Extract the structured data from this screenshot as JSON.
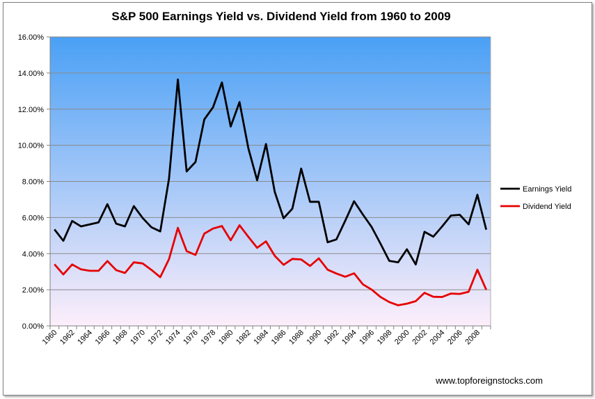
{
  "chart_data": {
    "type": "line",
    "title": "S&P 500  Earnings Yield vs. Dividend Yield from 1960 to 2009",
    "xlabel": "",
    "ylabel": "",
    "ylim": [
      0,
      16
    ],
    "y_ticks": [
      "0.00%",
      "2.00%",
      "4.00%",
      "6.00%",
      "8.00%",
      "10.00%",
      "12.00%",
      "14.00%",
      "16.00%"
    ],
    "x": [
      1960,
      1961,
      1962,
      1963,
      1964,
      1965,
      1966,
      1967,
      1968,
      1969,
      1970,
      1971,
      1972,
      1973,
      1974,
      1975,
      1976,
      1977,
      1978,
      1979,
      1980,
      1981,
      1982,
      1983,
      1984,
      1985,
      1986,
      1987,
      1988,
      1989,
      1990,
      1991,
      1992,
      1993,
      1994,
      1995,
      1996,
      1997,
      1998,
      1999,
      2000,
      2001,
      2002,
      2003,
      2004,
      2005,
      2006,
      2007,
      2008,
      2009
    ],
    "x_tick_labels": [
      "1960",
      "1962",
      "1964",
      "1966",
      "1968",
      "1970",
      "1972",
      "1974",
      "1976",
      "1978",
      "1980",
      "1982",
      "1984",
      "1986",
      "1988",
      "1990",
      "1992",
      "1994",
      "1996",
      "1998",
      "2000",
      "2002",
      "2004",
      "2006",
      "2008"
    ],
    "series": [
      {
        "name": "Earnings Yield",
        "color": "#000000",
        "values": [
          5.34,
          4.71,
          5.81,
          5.51,
          5.62,
          5.73,
          6.74,
          5.66,
          5.51,
          6.63,
          5.98,
          5.46,
          5.23,
          8.16,
          13.64,
          8.55,
          9.07,
          11.43,
          12.11,
          13.48,
          11.04,
          12.39,
          9.83,
          8.06,
          10.07,
          7.42,
          5.96,
          6.49,
          8.71,
          6.87,
          6.87,
          4.63,
          4.79,
          5.82,
          6.9,
          6.17,
          5.47,
          4.55,
          3.6,
          3.52,
          4.24,
          3.4,
          5.21,
          4.94,
          5.51,
          6.11,
          6.15,
          5.62,
          7.26,
          5.33
        ]
      },
      {
        "name": "Dividend Yield",
        "color": "#e60000",
        "values": [
          3.41,
          2.85,
          3.4,
          3.13,
          3.05,
          3.05,
          3.59,
          3.09,
          2.93,
          3.52,
          3.46,
          3.1,
          2.7,
          3.7,
          5.43,
          4.14,
          3.93,
          5.11,
          5.39,
          5.53,
          4.74,
          5.57,
          4.93,
          4.32,
          4.68,
          3.88,
          3.38,
          3.71,
          3.68,
          3.32,
          3.74,
          3.11,
          2.9,
          2.72,
          2.91,
          2.3,
          2.01,
          1.6,
          1.32,
          1.14,
          1.23,
          1.37,
          1.83,
          1.61,
          1.6,
          1.79,
          1.77,
          1.89,
          3.11,
          2.0
        ]
      }
    ],
    "legend_position": "right",
    "grid": true,
    "background_gradient": [
      "#4aa0f5",
      "#fdeefa"
    ]
  },
  "credit": "www.topforeignstocks.com"
}
